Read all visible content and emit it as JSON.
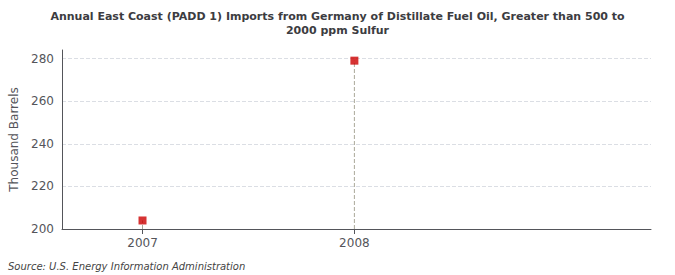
{
  "chart_data": {
    "type": "scatter",
    "title": "Annual East Coast (PADD 1) Imports from Germany of Distillate Fuel Oil, Greater than 500 to\n2000 ppm Sulfur",
    "ylabel": "Thousand Barrels",
    "source": "Source: U.S. Energy Information Administration",
    "x": [
      2007,
      2008
    ],
    "values": [
      204,
      279
    ],
    "color": "#cc0000",
    "marker": "square",
    "xlim": [
      2006.62,
      2009.4
    ],
    "ylim": [
      200,
      284
    ],
    "xticks": [
      2007,
      2008
    ],
    "yticks": [
      200,
      220,
      240,
      260,
      280
    ],
    "grid": true
  }
}
